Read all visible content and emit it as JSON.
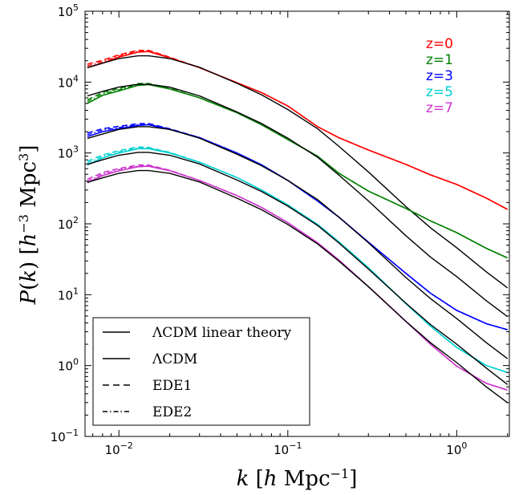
{
  "chart_data": {
    "type": "line",
    "xscale": "log",
    "yscale": "log",
    "xlim": [
      0.0063,
      2.05
    ],
    "ylim": [
      0.1,
      100000
    ],
    "xlabel": "k [h Mpc^-1]",
    "ylabel": "P(k) [h^-3 Mpc^3]",
    "x_ticks": [
      {
        "value": 0.01,
        "base": "10",
        "exp": "-2"
      },
      {
        "value": 0.1,
        "base": "10",
        "exp": "-1"
      },
      {
        "value": 1,
        "base": "10",
        "exp": "0"
      }
    ],
    "y_ticks": [
      {
        "value": 0.1,
        "base": "10",
        "exp": "-1"
      },
      {
        "value": 1,
        "base": "10",
        "exp": "0"
      },
      {
        "value": 10,
        "base": "10",
        "exp": "1"
      },
      {
        "value": 100,
        "base": "10",
        "exp": "2"
      },
      {
        "value": 1000,
        "base": "10",
        "exp": "3"
      },
      {
        "value": 10000,
        "base": "10",
        "exp": "4"
      },
      {
        "value": 100000,
        "base": "10",
        "exp": "5"
      }
    ],
    "legend": {
      "position": "lower-left",
      "entries": [
        {
          "label": "ΛCDM linear theory",
          "style": "solid"
        },
        {
          "label": "ΛCDM",
          "style": "solid"
        },
        {
          "label": "EDE1",
          "style": "dashed"
        },
        {
          "label": "EDE2",
          "style": "dashdot"
        }
      ]
    },
    "series": [
      {
        "name": "z=0",
        "color": "#ff0000",
        "x": [
          0.0065,
          0.008,
          0.01,
          0.013,
          0.015,
          0.02,
          0.03,
          0.05,
          0.07,
          0.1,
          0.15,
          0.2,
          0.3,
          0.5,
          0.7,
          1.0,
          1.5,
          2.0
        ],
        "y": [
          16000,
          18500,
          22500,
          26500,
          27000,
          22000,
          16000,
          9800,
          7100,
          4600,
          2350,
          1650,
          1100,
          690,
          490,
          360,
          230,
          160
        ],
        "linear": [
          16000,
          18500,
          21500,
          23500,
          23500,
          21500,
          16200,
          9600,
          6600,
          4100,
          2200,
          1250,
          540,
          175,
          88,
          46,
          21,
          12.5
        ]
      },
      {
        "name": "z=1",
        "color": "#008000",
        "x": [
          0.0065,
          0.008,
          0.01,
          0.013,
          0.015,
          0.02,
          0.03,
          0.05,
          0.07,
          0.1,
          0.15,
          0.2,
          0.3,
          0.5,
          0.7,
          1.0,
          1.5,
          2.0
        ],
        "y": [
          5000,
          6500,
          7500,
          9000,
          9200,
          8000,
          6000,
          3700,
          2500,
          1550,
          900,
          520,
          290,
          165,
          110,
          75,
          45,
          33
        ],
        "linear": [
          6400,
          7400,
          8500,
          9300,
          9300,
          8500,
          6400,
          3800,
          2600,
          1620,
          870,
          490,
          210,
          68,
          34,
          18,
          8.2,
          4.9
        ]
      },
      {
        "name": "z=3",
        "color": "#0000ff",
        "x": [
          0.0065,
          0.008,
          0.01,
          0.013,
          0.015,
          0.02,
          0.03,
          0.05,
          0.07,
          0.1,
          0.15,
          0.2,
          0.3,
          0.5,
          0.7,
          1.0,
          1.5,
          2.0
        ],
        "y": [
          1700,
          2000,
          2200,
          2450,
          2500,
          2150,
          1650,
          1000,
          680,
          410,
          210,
          125,
          55,
          20,
          10.5,
          6,
          3.9,
          3.2
        ],
        "linear": [
          1600,
          1850,
          2150,
          2350,
          2350,
          2150,
          1620,
          960,
          660,
          410,
          220,
          125,
          54,
          17.5,
          8.8,
          4.6,
          2.1,
          1.25
        ]
      },
      {
        "name": "z=5",
        "color": "#00d0d0",
        "x": [
          0.0065,
          0.008,
          0.01,
          0.013,
          0.015,
          0.02,
          0.03,
          0.05,
          0.07,
          0.1,
          0.15,
          0.2,
          0.3,
          0.5,
          0.7,
          1.0,
          1.5,
          2.0
        ],
        "y": [
          680,
          850,
          1000,
          1150,
          1150,
          1000,
          740,
          450,
          300,
          185,
          98,
          56,
          24,
          7.5,
          3.6,
          1.8,
          1.0,
          0.8
        ],
        "linear": [
          690,
          800,
          930,
          1020,
          1020,
          930,
          700,
          415,
          285,
          178,
          95,
          54,
          23,
          7.6,
          3.8,
          2.0,
          0.92,
          0.54
        ]
      },
      {
        "name": "z=7",
        "color": "#cc33cc",
        "x": [
          0.0065,
          0.008,
          0.01,
          0.013,
          0.015,
          0.02,
          0.03,
          0.05,
          0.07,
          0.1,
          0.15,
          0.2,
          0.3,
          0.5,
          0.7,
          1.0,
          1.5,
          2.0
        ],
        "y": [
          380,
          480,
          560,
          640,
          650,
          560,
          410,
          250,
          170,
          104,
          54,
          31,
          13,
          4.2,
          2.0,
          0.98,
          0.56,
          0.45
        ],
        "linear": [
          385,
          445,
          515,
          565,
          565,
          515,
          390,
          230,
          158,
          98,
          52,
          30,
          13,
          4.2,
          2.1,
          1.1,
          0.5,
          0.3
        ]
      }
    ]
  }
}
